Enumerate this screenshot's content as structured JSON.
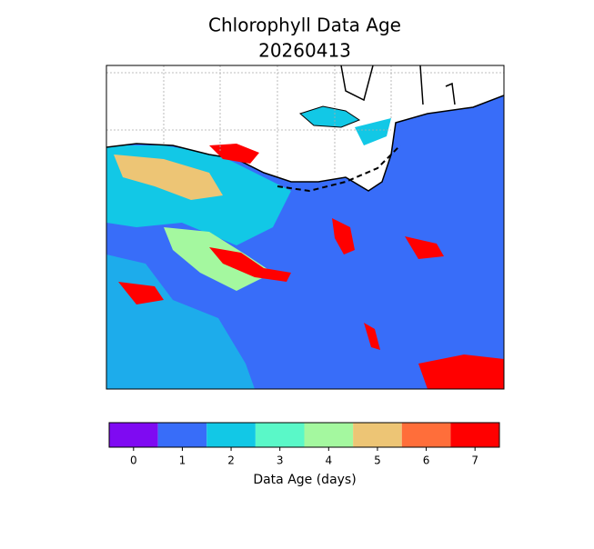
{
  "title": [
    "Chlorophyll Data Age",
    "20260413"
  ],
  "colorbar": {
    "ticks": [
      0,
      1,
      2,
      3,
      4,
      5,
      6,
      7
    ],
    "colors": [
      "#7f0af2",
      "#386df9",
      "#12c8e6",
      "#5af8c8",
      "#a4f89f",
      "#edc575",
      "#ff6e3a",
      "#ff0000"
    ],
    "label": "Data Age (days)"
  }
}
